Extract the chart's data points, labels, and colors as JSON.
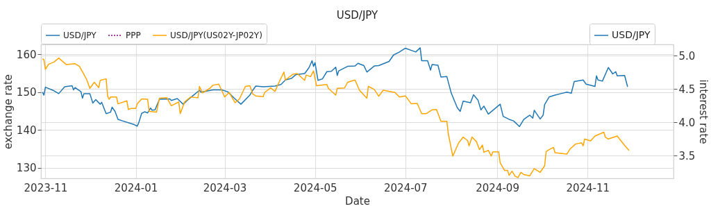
{
  "chart_data": {
    "type": "line",
    "title": "USD/JPY",
    "xlabel": "Date",
    "ylabel": "exchange rate",
    "y2label": "interest rate",
    "xlim": [
      "2023-10-29",
      "2024-12-29"
    ],
    "xticks": [
      "2023-11",
      "2024-01",
      "2024-03",
      "2024-05",
      "2024-07",
      "2024-09",
      "2024-11"
    ],
    "ylim": [
      127.2,
      162.6
    ],
    "yticks": [
      130,
      140,
      150,
      160
    ],
    "y2lim": [
      3.16,
      5.17
    ],
    "y2ticks": [
      3.5,
      {
        "value": 4,
        "label": "4.0"
      },
      4.5,
      {
        "value": 5,
        "label": "5.0"
      }
    ],
    "grid": true,
    "legend": "top left",
    "series": [
      {
        "name": "USD/JPY",
        "color": "#1f77b4",
        "x": [
          "2023-10-30",
          "2023-10-31",
          "2023-11-01",
          "2023-11-06",
          "2023-11-10",
          "2023-11-14",
          "2023-11-19",
          "2023-11-20",
          "2023-11-21",
          "2023-11-25",
          "2023-11-26",
          "2023-11-27",
          "2023-12-01",
          "2023-12-03",
          "2023-12-05",
          "2023-12-08",
          "2023-12-09",
          "2023-12-12",
          "2023-12-15",
          "2023-12-16",
          "2023-12-18",
          "2023-12-20",
          "2023-12-23",
          "2023-12-31",
          "2024-01-02",
          "2024-01-03",
          "2024-01-05",
          "2024-01-07",
          "2024-01-09",
          "2024-01-11",
          "2024-01-12",
          "2024-01-14",
          "2024-01-17",
          "2024-01-24",
          "2024-01-25",
          "2024-01-29",
          "2024-02-02",
          "2024-02-05",
          "2024-02-09",
          "2024-02-13",
          "2024-02-14",
          "2024-02-22",
          "2024-02-28",
          "2024-03-03",
          "2024-03-08",
          "2024-03-12",
          "2024-03-18",
          "2024-03-20",
          "2024-03-22",
          "2024-03-27",
          "2024-04-04",
          "2024-04-08",
          "2024-04-11",
          "2024-04-15",
          "2024-04-18",
          "2024-04-24",
          "2024-04-27",
          "2024-04-29",
          "2024-04-30",
          "2024-05-01",
          "2024-05-03",
          "2024-05-06",
          "2024-05-09",
          "2024-05-12",
          "2024-05-15",
          "2024-05-16",
          "2024-05-17",
          "2024-05-23",
          "2024-05-28",
          "2024-05-30",
          "2024-06-03",
          "2024-06-05",
          "2024-06-10",
          "2024-06-13",
          "2024-06-20",
          "2024-06-23",
          "2024-06-27",
          "2024-07-01",
          "2024-07-08",
          "2024-07-11",
          "2024-07-12",
          "2024-07-16",
          "2024-07-18",
          "2024-07-19",
          "2024-07-23",
          "2024-07-25",
          "2024-07-29",
          "2024-08-01",
          "2024-08-05",
          "2024-08-07",
          "2024-08-09",
          "2024-08-14",
          "2024-08-16",
          "2024-08-19",
          "2024-08-21",
          "2024-08-23",
          "2024-08-26",
          "2024-09-03",
          "2024-09-05",
          "2024-09-09",
          "2024-09-12",
          "2024-09-16",
          "2024-09-19",
          "2024-09-23",
          "2024-09-25",
          "2024-09-26",
          "2024-09-30",
          "2024-10-02",
          "2024-10-03",
          "2024-10-06",
          "2024-10-10",
          "2024-10-14",
          "2024-10-18",
          "2024-10-21",
          "2024-10-23",
          "2024-10-29",
          "2024-10-31",
          "2024-11-06",
          "2024-11-07",
          "2024-11-08",
          "2024-11-11",
          "2024-11-15",
          "2024-11-18",
          "2024-11-20",
          "2024-11-21",
          "2024-11-26",
          "2024-11-28"
        ],
        "values": [
          150.0,
          149.2,
          151.3,
          150.5,
          149.6,
          151.4,
          151.7,
          150.6,
          151.2,
          150.1,
          148.4,
          149.6,
          149.6,
          147.1,
          148.0,
          146.8,
          147.3,
          144.3,
          144.7,
          146.0,
          144.9,
          142.8,
          142.4,
          141.4,
          141.0,
          141.9,
          144.4,
          144.8,
          144.5,
          145.8,
          145.2,
          145.3,
          148.1,
          148.2,
          147.8,
          148.3,
          146.8,
          147.9,
          149.2,
          150.5,
          150.0,
          150.6,
          150.6,
          150.1,
          148.2,
          146.8,
          149.2,
          150.5,
          151.6,
          151.4,
          151.6,
          152.0,
          153.2,
          153.6,
          154.6,
          154.9,
          156.5,
          158.3,
          156.8,
          157.8,
          153.1,
          153.5,
          155.4,
          155.5,
          156.6,
          154.4,
          155.6,
          156.8,
          156.9,
          157.6,
          157.0,
          155.3,
          156.9,
          157.0,
          158.1,
          159.8,
          160.6,
          161.6,
          160.6,
          161.7,
          158.3,
          158.3,
          155.8,
          157.3,
          157.1,
          154.0,
          154.1,
          149.7,
          145.9,
          144.9,
          147.6,
          147.2,
          149.3,
          147.9,
          145.3,
          146.3,
          144.2,
          146.8,
          143.6,
          142.8,
          142.4,
          140.9,
          142.8,
          143.9,
          143.1,
          145.2,
          142.9,
          143.9,
          146.7,
          148.7,
          149.2,
          149.6,
          150.0,
          149.7,
          152.8,
          153.2,
          152.1,
          151.5,
          154.3,
          153.2,
          152.9,
          156.5,
          154.8,
          155.4,
          154.3,
          154.4,
          151.4
        ]
      },
      {
        "name": "PPP",
        "color": "#800080",
        "line_style": "dotted"
      },
      {
        "name": "USD/JPY(US02Y-JP02Y)",
        "color": "#ffa500",
        "x": [
          "2023-10-30",
          "2023-10-31",
          "2023-11-01",
          "2023-11-03",
          "2023-11-07",
          "2023-11-10",
          "2023-11-15",
          "2023-11-21",
          "2023-11-24",
          "2023-11-27",
          "2023-11-29",
          "2023-12-01",
          "2023-12-04",
          "2023-12-07",
          "2023-12-08",
          "2023-12-12",
          "2023-12-13",
          "2023-12-14",
          "2023-12-15",
          "2023-12-19",
          "2023-12-20",
          "2023-12-26",
          "2023-12-27",
          "2023-12-29",
          "2024-01-01",
          "2024-01-02",
          "2024-01-05",
          "2024-01-09",
          "2024-01-10",
          "2024-01-15",
          "2024-01-17",
          "2024-01-22",
          "2024-01-25",
          "2024-01-30",
          "2024-01-31",
          "2024-02-03",
          "2024-02-07",
          "2024-02-12",
          "2024-02-13",
          "2024-02-15",
          "2024-02-20",
          "2024-02-22",
          "2024-02-26",
          "2024-02-28",
          "2024-03-01",
          "2024-03-04",
          "2024-03-08",
          "2024-03-11",
          "2024-03-15",
          "2024-03-18",
          "2024-03-20",
          "2024-03-22",
          "2024-03-27",
          "2024-03-28",
          "2024-04-01",
          "2024-04-04",
          "2024-04-06",
          "2024-04-10",
          "2024-04-11",
          "2024-04-16",
          "2024-04-19",
          "2024-04-24",
          "2024-04-25",
          "2024-04-28",
          "2024-04-30",
          "2024-05-02",
          "2024-05-09",
          "2024-05-10",
          "2024-05-15",
          "2024-05-16",
          "2024-05-21",
          "2024-05-23",
          "2024-05-28",
          "2024-05-31",
          "2024-06-05",
          "2024-06-06",
          "2024-06-10",
          "2024-06-13",
          "2024-06-16",
          "2024-06-24",
          "2024-06-27",
          "2024-07-01",
          "2024-07-05",
          "2024-07-09",
          "2024-07-12",
          "2024-07-15",
          "2024-07-19",
          "2024-07-22",
          "2024-07-25",
          "2024-07-29",
          "2024-07-30",
          "2024-08-02",
          "2024-08-06",
          "2024-08-09",
          "2024-08-12",
          "2024-08-13",
          "2024-08-15",
          "2024-08-18",
          "2024-08-20",
          "2024-08-22",
          "2024-08-23",
          "2024-08-26",
          "2024-08-28",
          "2024-08-29",
          "2024-09-02",
          "2024-09-03",
          "2024-09-06",
          "2024-09-08",
          "2024-09-09",
          "2024-09-11",
          "2024-09-13",
          "2024-09-15",
          "2024-09-17",
          "2024-09-19",
          "2024-09-23",
          "2024-09-26",
          "2024-09-30",
          "2024-10-03",
          "2024-10-04",
          "2024-10-06",
          "2024-10-09",
          "2024-10-10",
          "2024-10-16",
          "2024-10-18",
          "2024-10-20",
          "2024-10-24",
          "2024-10-28",
          "2024-10-29",
          "2024-10-30",
          "2024-11-03",
          "2024-11-06",
          "2024-11-12",
          "2024-11-13",
          "2024-11-15",
          "2024-11-21",
          "2024-11-26",
          "2024-11-29"
        ],
        "values": [
          158.8,
          158.6,
          156.0,
          157.3,
          158.0,
          159.0,
          157.3,
          157.5,
          156.8,
          154.7,
          153.2,
          151.0,
          152.6,
          151.2,
          153.1,
          153.5,
          149.0,
          148.1,
          148.7,
          148.7,
          146.9,
          147.7,
          145.4,
          145.7,
          145.7,
          146.9,
          148.2,
          148.1,
          144.9,
          144.7,
          148.4,
          148.5,
          146.4,
          147.4,
          144.3,
          147.4,
          148.7,
          148.5,
          151.5,
          149.8,
          151.0,
          151.8,
          152.1,
          150.5,
          148.7,
          149.9,
          147.2,
          148.2,
          151.5,
          151.7,
          149.5,
          149.0,
          148.8,
          149.9,
          151.1,
          150.2,
          152.0,
          155.3,
          153.2,
          154.7,
          154.9,
          153.1,
          154.5,
          154.1,
          155.6,
          151.7,
          152.0,
          151.0,
          149.2,
          151.0,
          151.1,
          152.6,
          153.2,
          150.5,
          148.4,
          151.5,
          150.7,
          148.9,
          150.5,
          149.9,
          148.7,
          149.0,
          146.9,
          147.0,
          144.3,
          144.3,
          145.3,
          145.4,
          142.3,
          142.3,
          138.9,
          133.1,
          136.6,
          138.1,
          137.2,
          135.8,
          138.1,
          136.9,
          134.8,
          136.0,
          134.1,
          134.6,
          133.1,
          134.2,
          134.2,
          131.3,
          129.3,
          129.3,
          128.0,
          129.1,
          127.8,
          127.4,
          128.8,
          128.2,
          127.9,
          129.8,
          128.8,
          130.5,
          134.3,
          134.8,
          135.4,
          134.0,
          133.7,
          133.6,
          134.9,
          136.3,
          136.6,
          135.8,
          137.6,
          137.1,
          138.4,
          139.4,
          138.1,
          137.6,
          138.4,
          135.9,
          134.6
        ]
      },
      {
        "name": "USD/JPY",
        "color": "#1f77b4",
        "axis": "y2"
      }
    ]
  }
}
